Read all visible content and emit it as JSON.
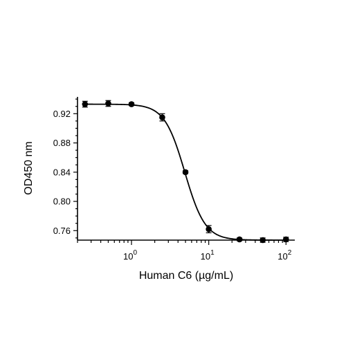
{
  "chart_data": {
    "type": "scatter",
    "xscale": "log",
    "xlabel": "Human C6 (µg/mL)",
    "ylabel": "OD450 nm",
    "xlim": [
      0.2,
      130
    ],
    "ylim": [
      0.747,
      0.943
    ],
    "x_ticks": [
      {
        "value": 1,
        "base": "10",
        "exp": "0"
      },
      {
        "value": 10,
        "base": "10",
        "exp": "1"
      },
      {
        "value": 100,
        "base": "10",
        "exp": "2"
      }
    ],
    "y_ticks": [
      {
        "value": 0.76,
        "label": "0.76"
      },
      {
        "value": 0.8,
        "label": "0.80"
      },
      {
        "value": 0.84,
        "label": "0.84"
      },
      {
        "value": 0.88,
        "label": "0.88"
      },
      {
        "value": 0.92,
        "label": "0.92"
      }
    ],
    "series": [
      {
        "x": [
          0.25,
          0.5,
          1,
          2.5,
          5,
          10,
          25,
          50,
          100
        ],
        "y": [
          0.933,
          0.934,
          0.933,
          0.915,
          0.84,
          0.762,
          0.748,
          0.747,
          0.748
        ],
        "error": [
          0.004,
          0.004,
          0.002,
          0.005,
          0.002,
          0.005,
          0.002,
          0.003,
          0.003
        ]
      }
    ],
    "fit": {
      "model": "4PL",
      "top": 0.933,
      "bottom": 0.747,
      "ec50": 4.9,
      "hill": 3.3
    },
    "grid": false
  }
}
